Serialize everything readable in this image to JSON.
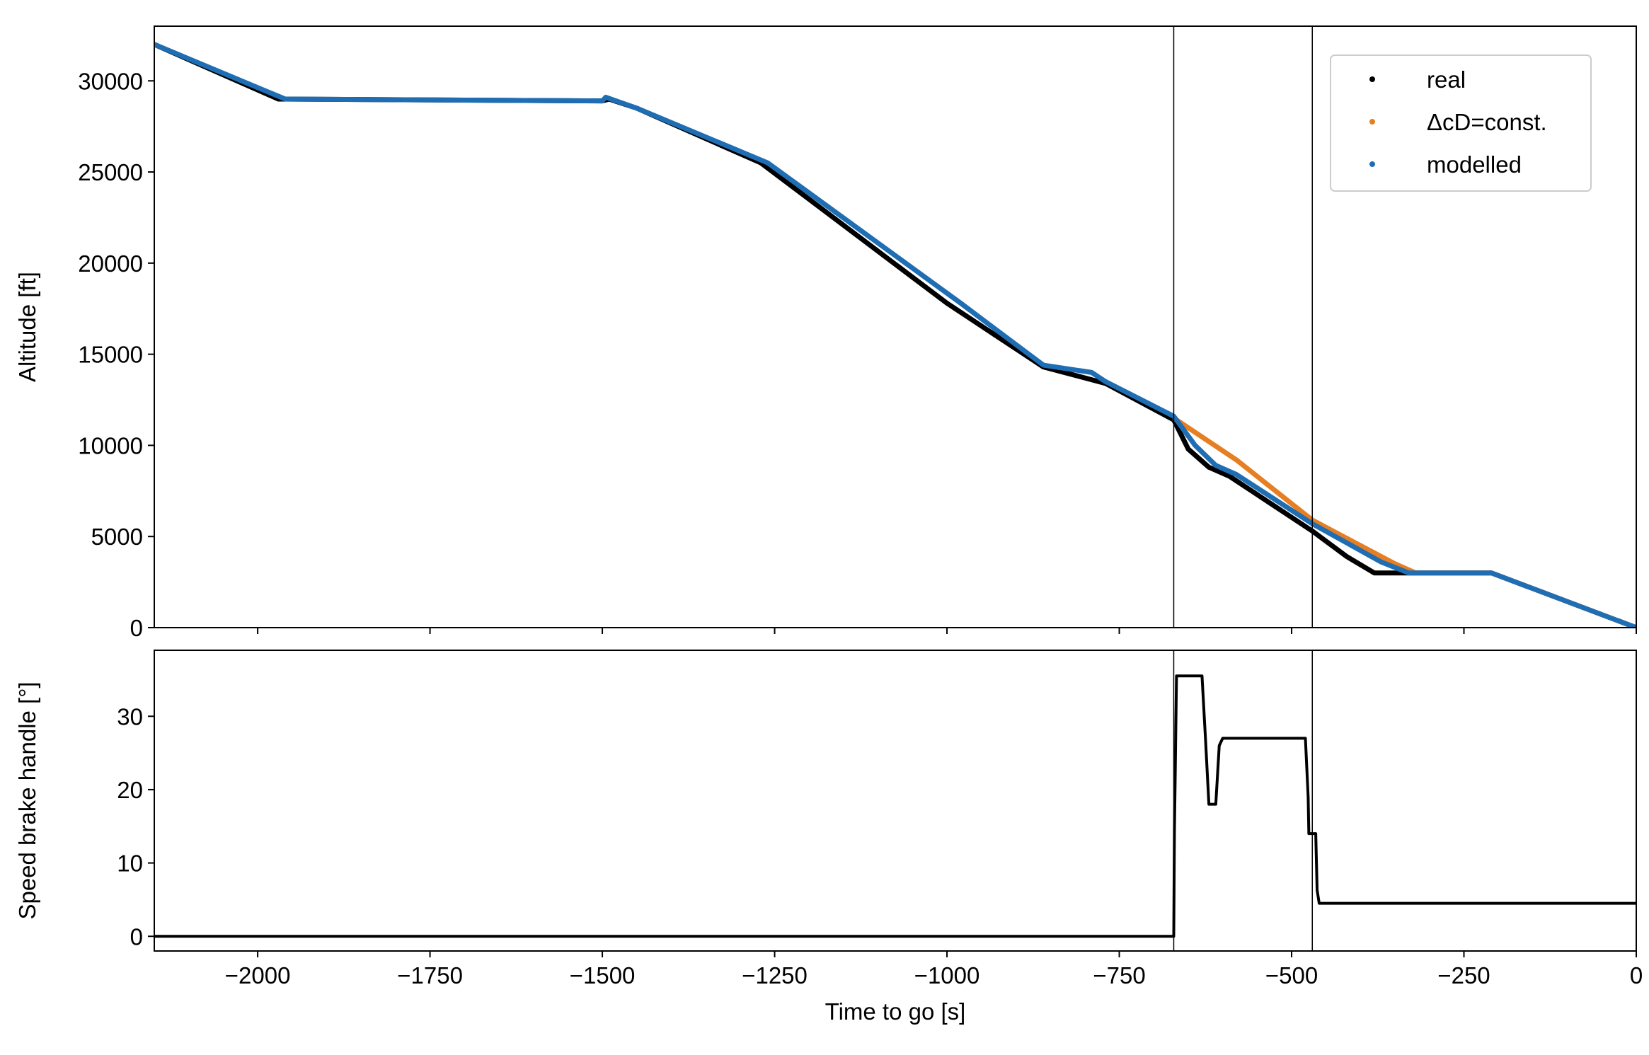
{
  "chart_data": [
    {
      "type": "line",
      "ylabel": "Altitude [ft]",
      "xlim": [
        -2150,
        0
      ],
      "ylim": [
        0,
        33000
      ],
      "xticks": [
        -2000,
        -1750,
        -1500,
        -1250,
        -1000,
        -750,
        -500,
        -250,
        0
      ],
      "yticks": [
        0,
        5000,
        10000,
        15000,
        20000,
        25000,
        30000
      ],
      "vlines": [
        -671,
        -470
      ],
      "legend": "upper right",
      "series": [
        {
          "name": "real",
          "color": "#000000",
          "x": [
            -2150,
            -1970,
            -1500,
            -1490,
            -1450,
            -1270,
            -1000,
            -860,
            -770,
            -671,
            -650,
            -620,
            -590,
            -470,
            -420,
            -380,
            -320,
            -210,
            0
          ],
          "values": [
            32000,
            29000,
            28900,
            29000,
            28500,
            25500,
            17800,
            14300,
            13400,
            11400,
            9800,
            8800,
            8300,
            5300,
            3900,
            3000,
            3000,
            3000,
            0
          ]
        },
        {
          "name": "ΔcD=const.",
          "color": "#e67e22",
          "x": [
            -671,
            -580,
            -470,
            -350,
            -320,
            -210,
            0
          ],
          "values": [
            11500,
            9200,
            5900,
            3500,
            3000,
            3000,
            0
          ]
        },
        {
          "name": "modelled",
          "color": "#1f6eb4",
          "x": [
            -2150,
            -1960,
            -1500,
            -1495,
            -1450,
            -1260,
            -980,
            -860,
            -790,
            -770,
            -671,
            -640,
            -610,
            -580,
            -470,
            -370,
            -330,
            -210,
            0
          ],
          "values": [
            32000,
            29000,
            28900,
            29100,
            28500,
            25500,
            17800,
            14400,
            14000,
            13500,
            11600,
            10000,
            8900,
            8400,
            5700,
            3600,
            3000,
            3000,
            0
          ]
        }
      ]
    },
    {
      "type": "line",
      "ylabel": "Speed brake handle [°]",
      "xlabel": "Time to go [s]",
      "xlim": [
        -2150,
        0
      ],
      "ylim": [
        -2,
        39
      ],
      "xticks": [
        {
          "value": -2000,
          "label": "−2000"
        },
        {
          "value": -1750,
          "label": "−1750"
        },
        {
          "value": -1500,
          "label": "−1500"
        },
        {
          "value": -1250,
          "label": "−1250"
        },
        {
          "value": -1000,
          "label": "−1000"
        },
        {
          "value": -750,
          "label": "−750"
        },
        {
          "value": -500,
          "label": "−500"
        },
        {
          "value": -250,
          "label": "−250"
        },
        0
      ],
      "yticks": [
        0,
        10,
        20,
        30
      ],
      "vlines": [
        -671,
        -470
      ],
      "series": [
        {
          "color": "#000000",
          "x": [
            -2150,
            -671,
            -670,
            -669,
            -667,
            -630,
            -625,
            -620,
            -610,
            -605,
            -600,
            -480,
            -476,
            -475,
            -465,
            -463,
            -460,
            0
          ],
          "values": [
            0,
            0,
            14.5,
            21,
            35.5,
            35.5,
            27,
            18,
            18,
            26,
            27,
            27,
            19,
            14,
            14,
            6.3,
            4.5,
            4.5
          ]
        }
      ]
    }
  ]
}
